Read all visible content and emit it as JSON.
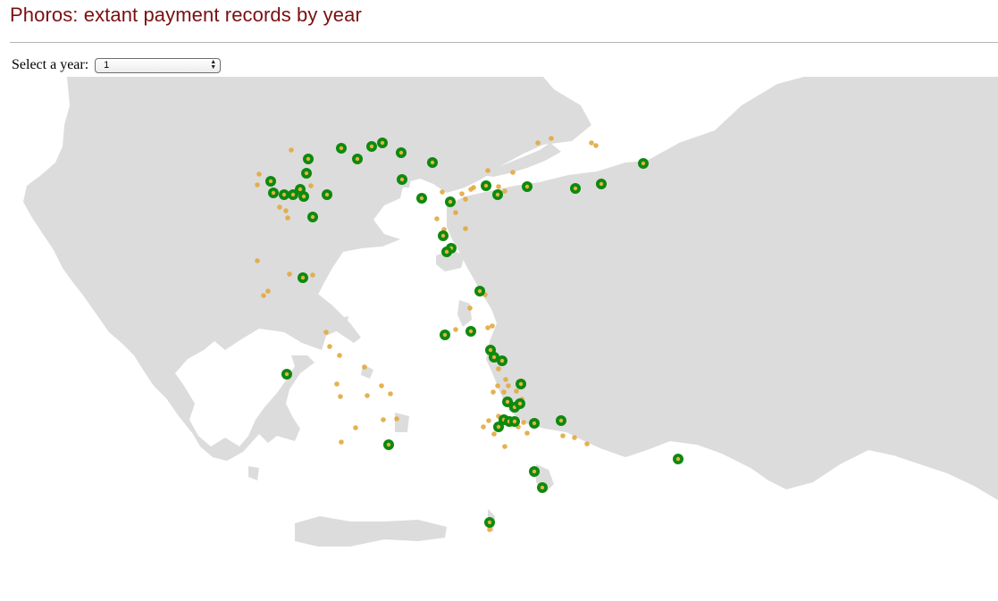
{
  "title": "Phoros: extant payment records by year",
  "year_selector": {
    "label": "Select a year:",
    "selected": "1"
  },
  "map": {
    "land_color": "#dcdcdc",
    "sea_color": "#ffffff",
    "record_marker_color": "#0d8a0d",
    "minor_marker_color": "#e2a93f"
  }
}
